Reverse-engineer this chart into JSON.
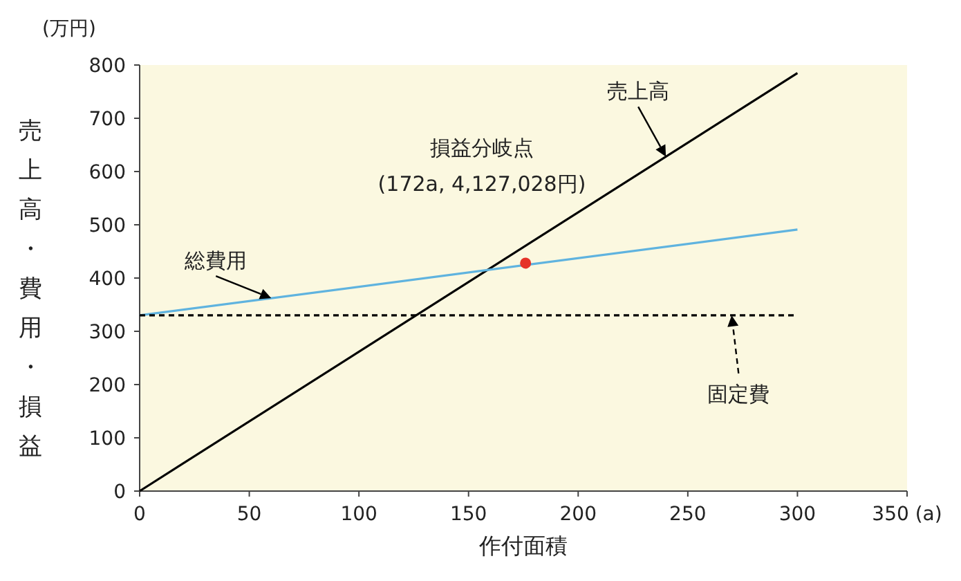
{
  "chart_data": {
    "type": "line",
    "xlabel": "作付面積",
    "ylabel": "売上高・費用・損益",
    "annotations": [
      "(万円)",
      "損益分岐点\n(172a, 4,127,028円)"
    ],
    "xlim": [
      0,
      350
    ],
    "ylim": [
      0,
      800
    ],
    "xticks": [
      0,
      50,
      100,
      150,
      200,
      250,
      300,
      {
        "value": 350,
        "label": "350 (a)"
      }
    ],
    "yticks": [
      0,
      100,
      200,
      300,
      400,
      500,
      600,
      700,
      800
    ],
    "series": [
      {
        "name": "売上高",
        "color": "#000000",
        "x": [
          0,
          300
        ],
        "values": [
          0,
          785
        ]
      },
      {
        "name": "総費用",
        "color": "#5fb3df",
        "x": [
          0,
          300
        ],
        "values": [
          330,
          491
        ]
      },
      {
        "name": "固定費",
        "color": "#000000",
        "x": [
          0,
          300
        ],
        "values": [
          330,
          330
        ],
        "line_style": "dashed"
      },
      {
        "type": "scatter",
        "color": "#e53228",
        "x": [
          176
        ],
        "values": [
          428
        ]
      }
    ]
  }
}
